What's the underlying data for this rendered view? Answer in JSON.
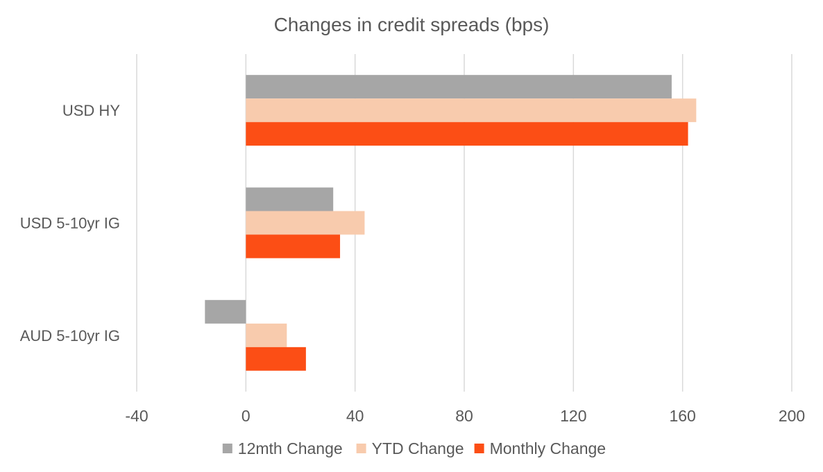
{
  "chart_data": {
    "type": "bar",
    "orientation": "horizontal",
    "title": "Changes in credit spreads (bps)",
    "categories": [
      "USD HY",
      "USD 5-10yr IG",
      "AUD 5-10yr IG"
    ],
    "series": [
      {
        "name": "12mth Change",
        "color": "#a6a6a6",
        "values": [
          156,
          32,
          -15
        ]
      },
      {
        "name": "YTD Change",
        "color": "#f8cbad",
        "values": [
          165,
          43.5,
          15
        ]
      },
      {
        "name": "Monthly Change",
        "color": "#fc4e15",
        "values": [
          162,
          34.5,
          22
        ]
      }
    ],
    "xlim": [
      -40,
      200
    ],
    "xticks": [
      "-40",
      "0",
      "40",
      "80",
      "120",
      "160",
      "200"
    ],
    "xtick_values": [
      -40,
      0,
      40,
      80,
      120,
      160,
      200
    ],
    "grid": true,
    "legend_position": "bottom"
  }
}
